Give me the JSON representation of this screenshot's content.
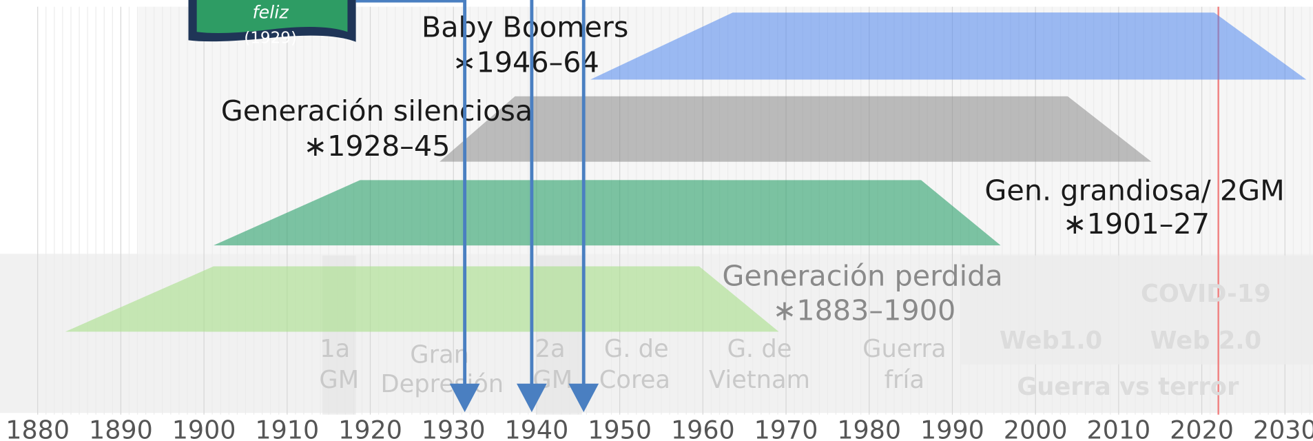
{
  "badge": {
    "lines": [
      "feliz",
      "(1929)"
    ]
  },
  "generations": [
    {
      "name": "Baby Boomers",
      "years": "∗1946–64"
    },
    {
      "name": "Generación silenciosa",
      "years": "∗1928–45"
    },
    {
      "name": "Gen. grandiosa/ 2GM",
      "years": "∗1901–27"
    },
    {
      "name": "Generación perdida",
      "years": "∗1883–1900"
    }
  ],
  "events": [
    [
      "1a",
      "GM"
    ],
    [
      "Gran",
      "Depresión"
    ],
    [
      "2a",
      "GM"
    ],
    [
      "G. de",
      "Corea"
    ],
    [
      "G. de",
      "Vietnam"
    ],
    [
      "Guerra",
      "fría"
    ],
    [
      "Web1.0"
    ],
    [
      "Web 2.0"
    ],
    [
      "Guerra vs terror"
    ],
    [
      "COVID-19"
    ]
  ],
  "axis": [
    "1880",
    "1890",
    "1900",
    "1910",
    "1920",
    "1930",
    "1940",
    "1950",
    "1960",
    "1970",
    "1980",
    "1990",
    "2000",
    "2010",
    "2020",
    "2030"
  ]
}
